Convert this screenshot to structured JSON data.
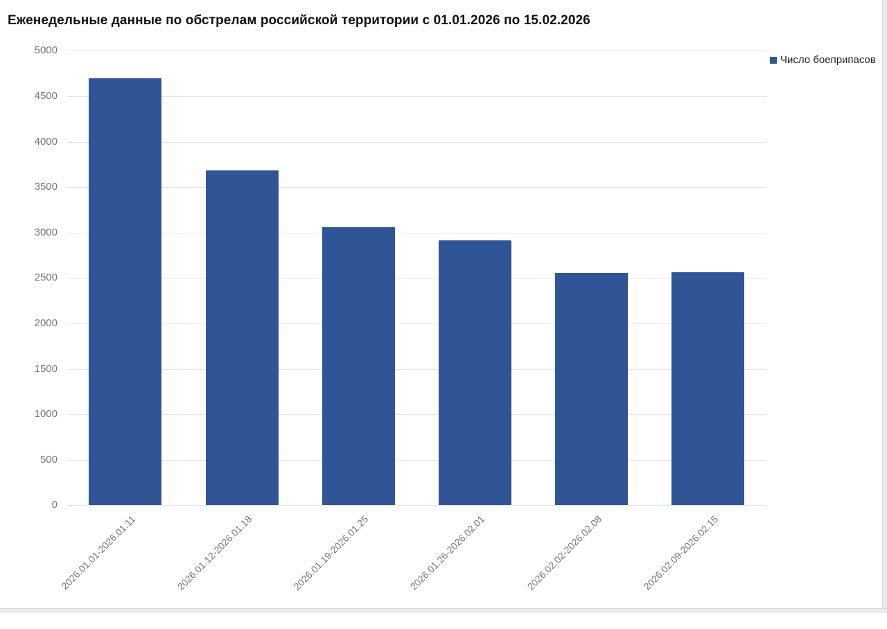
{
  "title": "Еженедельные данные по обстрелам российской территории с 01.01.2026 по 15.02.2026",
  "legend": {
    "label": "Число боеприпасов",
    "marker_color": "#2F5596"
  },
  "chart_data": {
    "type": "bar",
    "title": "Еженедельные данные по обстрелам российской территории с 01.01.2026 по 15.02.2026",
    "categories": [
      "2026.01.01-2026.01.11",
      "2026.01.12-2026.01.18",
      "2026.01.19-2026.01.25",
      "2026.01.26-2026.02.01",
      "2026.02.02-2026.02.08",
      "2026.02.09-2026.02.15"
    ],
    "series": [
      {
        "name": "Число боеприпасов",
        "values": [
          4695,
          3685,
          3060,
          2915,
          2555,
          2565
        ]
      }
    ],
    "xlabel": "",
    "ylabel": "",
    "ylim": [
      0,
      5000
    ],
    "ytick_step": 500,
    "yticks": [
      0,
      500,
      1000,
      1500,
      2000,
      2500,
      3000,
      3500,
      4000,
      4500,
      5000
    ],
    "grid": true,
    "legend_position": "top-right",
    "bar_color": "#2F5596",
    "gridline_color": "#e3e3e3",
    "tick_label_color": "#757575"
  }
}
